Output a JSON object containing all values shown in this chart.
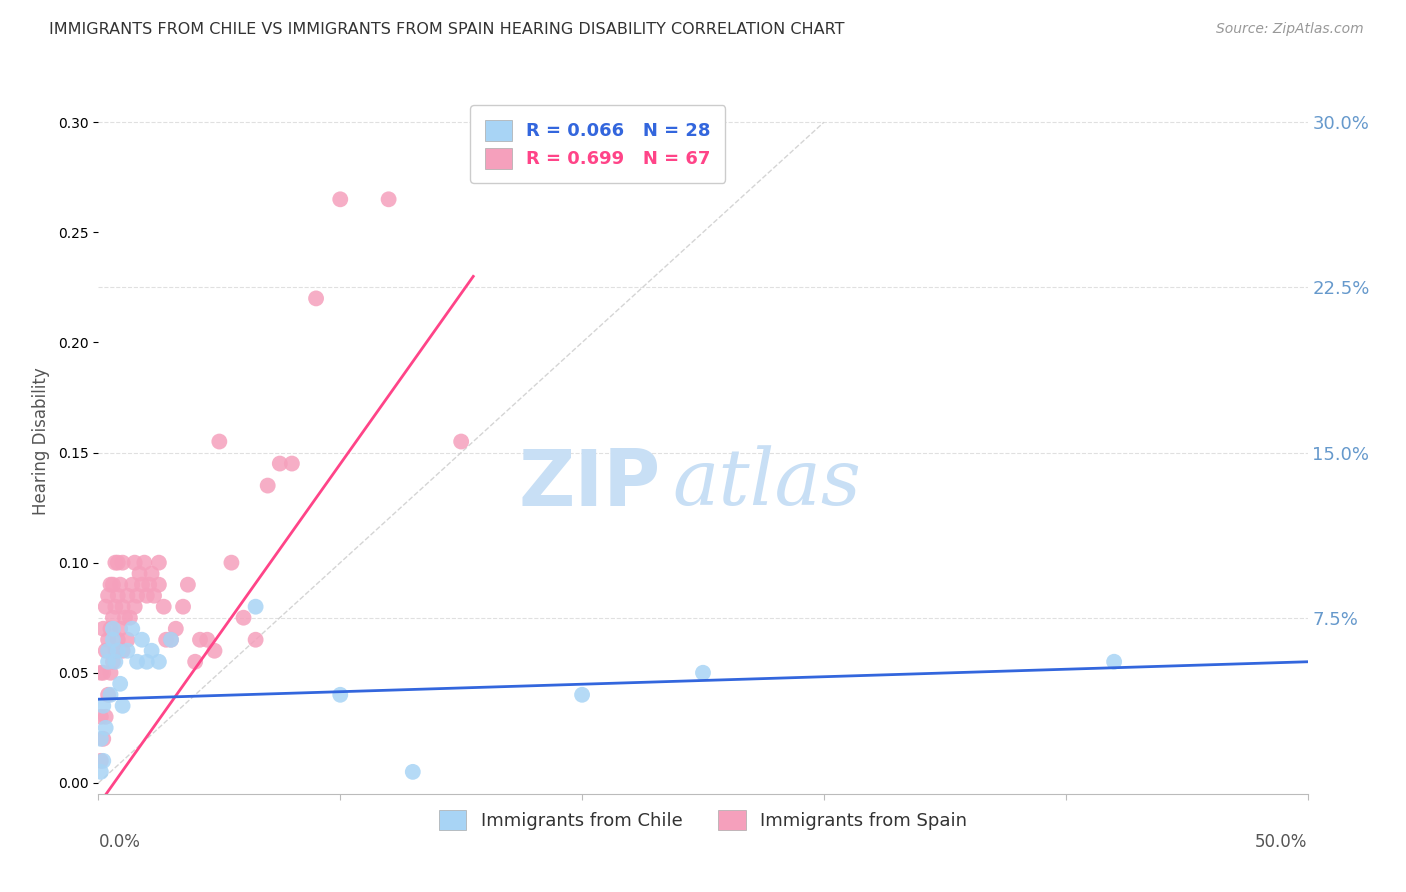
{
  "title": "IMMIGRANTS FROM CHILE VS IMMIGRANTS FROM SPAIN HEARING DISABILITY CORRELATION CHART",
  "source": "Source: ZipAtlas.com",
  "ylabel": "Hearing Disability",
  "xlim": [
    0.0,
    0.5
  ],
  "ylim": [
    -0.005,
    0.315
  ],
  "chile_R": 0.066,
  "chile_N": 28,
  "spain_R": 0.699,
  "spain_N": 67,
  "chile_color": "#A8D4F5",
  "spain_color": "#F5A0BC",
  "chile_line_color": "#3366DD",
  "spain_line_color": "#FF4488",
  "ref_line_color": "#D0D0D0",
  "background_color": "#FFFFFF",
  "watermark_zip_color": "#C8DFF5",
  "watermark_atlas_color": "#C8DFF5",
  "grid_color": "#E0E0E0",
  "title_color": "#333333",
  "source_color": "#999999",
  "axis_label_color": "#555555",
  "right_tick_color": "#6699CC",
  "yticks": [
    0.0,
    0.075,
    0.15,
    0.225,
    0.3
  ],
  "ytick_labels": [
    "",
    "7.5%",
    "15.0%",
    "22.5%",
    "30.0%"
  ],
  "chile_x": [
    0.001,
    0.001,
    0.002,
    0.002,
    0.003,
    0.004,
    0.004,
    0.005,
    0.006,
    0.006,
    0.007,
    0.008,
    0.009,
    0.01,
    0.012,
    0.014,
    0.016,
    0.018,
    0.02,
    0.022,
    0.025,
    0.03,
    0.065,
    0.1,
    0.13,
    0.2,
    0.25,
    0.42
  ],
  "chile_y": [
    0.005,
    0.02,
    0.01,
    0.035,
    0.025,
    0.055,
    0.06,
    0.04,
    0.065,
    0.07,
    0.055,
    0.06,
    0.045,
    0.035,
    0.06,
    0.07,
    0.055,
    0.065,
    0.055,
    0.06,
    0.055,
    0.065,
    0.08,
    0.04,
    0.005,
    0.04,
    0.05,
    0.055
  ],
  "spain_x": [
    0.001,
    0.001,
    0.001,
    0.002,
    0.002,
    0.002,
    0.003,
    0.003,
    0.003,
    0.004,
    0.004,
    0.004,
    0.005,
    0.005,
    0.005,
    0.006,
    0.006,
    0.006,
    0.007,
    0.007,
    0.007,
    0.008,
    0.008,
    0.008,
    0.009,
    0.009,
    0.01,
    0.01,
    0.01,
    0.011,
    0.012,
    0.012,
    0.013,
    0.014,
    0.015,
    0.015,
    0.016,
    0.017,
    0.018,
    0.019,
    0.02,
    0.021,
    0.022,
    0.023,
    0.025,
    0.025,
    0.027,
    0.028,
    0.03,
    0.032,
    0.035,
    0.037,
    0.04,
    0.042,
    0.045,
    0.048,
    0.05,
    0.055,
    0.06,
    0.065,
    0.07,
    0.075,
    0.08,
    0.09,
    0.1,
    0.12,
    0.15
  ],
  "spain_y": [
    0.01,
    0.03,
    0.05,
    0.02,
    0.05,
    0.07,
    0.03,
    0.06,
    0.08,
    0.04,
    0.065,
    0.085,
    0.05,
    0.07,
    0.09,
    0.055,
    0.075,
    0.09,
    0.06,
    0.08,
    0.1,
    0.065,
    0.085,
    0.1,
    0.07,
    0.09,
    0.06,
    0.08,
    0.1,
    0.075,
    0.065,
    0.085,
    0.075,
    0.09,
    0.08,
    0.1,
    0.085,
    0.095,
    0.09,
    0.1,
    0.085,
    0.09,
    0.095,
    0.085,
    0.09,
    0.1,
    0.08,
    0.065,
    0.065,
    0.07,
    0.08,
    0.09,
    0.055,
    0.065,
    0.065,
    0.06,
    0.155,
    0.1,
    0.075,
    0.065,
    0.135,
    0.145,
    0.145,
    0.22,
    0.265,
    0.265,
    0.155
  ],
  "spain_line_x0": 0.0,
  "spain_line_y0": -0.01,
  "spain_line_x1": 0.155,
  "spain_line_y1": 0.23,
  "chile_line_x0": 0.0,
  "chile_line_y0": 0.038,
  "chile_line_x1": 0.5,
  "chile_line_y1": 0.055
}
